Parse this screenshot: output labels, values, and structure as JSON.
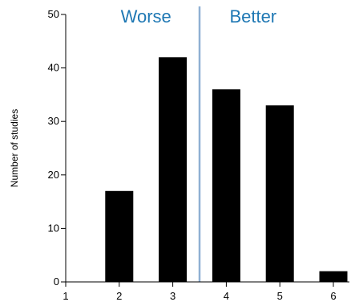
{
  "chart_data": {
    "type": "bar",
    "x": [
      1,
      2,
      3,
      4,
      5,
      6
    ],
    "values": [
      0,
      17,
      42,
      36,
      33,
      2
    ],
    "bar_color": "#000000",
    "xlabel": "",
    "ylabel": "Number of studies",
    "xticks": [
      "1",
      "2",
      "3",
      "4",
      "5",
      "6"
    ],
    "yticks": [
      "0",
      "10",
      "20",
      "30",
      "40",
      "50"
    ],
    "xlim": [
      1,
      6
    ],
    "ylim": [
      0,
      50
    ],
    "grid": false,
    "divider": {
      "at_x": 3.5,
      "color": "#8fb0d3"
    },
    "annotations": [
      {
        "text": "Worse",
        "at_x": 2.5,
        "color": "#1f78b4"
      },
      {
        "text": "Better",
        "at_x": 4.5,
        "color": "#1f78b4"
      }
    ]
  }
}
